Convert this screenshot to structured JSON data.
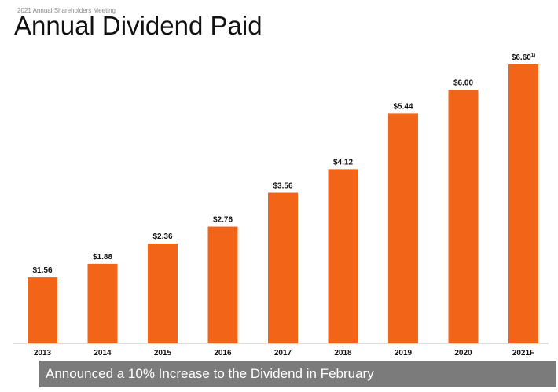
{
  "header": {
    "meeting": "2021 Annual Shareholders Meeting",
    "title": "Annual Dividend Paid"
  },
  "banner": {
    "text": "Announced a 10% Increase to the Dividend in February",
    "color": "#7b7b7b"
  },
  "colors": {
    "bar": "#f26418",
    "axis": "#bdbdbd"
  },
  "chart_data": {
    "type": "bar",
    "title": "Annual Dividend Paid",
    "categories": [
      "2013",
      "2014",
      "2015",
      "2016",
      "2017",
      "2018",
      "2019",
      "2020",
      "2021F"
    ],
    "values": [
      1.56,
      1.88,
      2.36,
      2.76,
      3.56,
      4.12,
      5.44,
      6.0,
      6.6
    ],
    "data_labels": [
      "$1.56",
      "$1.88",
      "$2.36",
      "$2.76",
      "$3.56",
      "$4.12",
      "$5.44",
      "$6.00",
      "$6.60"
    ],
    "footnote_marks": [
      "",
      "",
      "",
      "",
      "",
      "",
      "",
      "",
      "1)"
    ],
    "ylim": [
      0,
      6.6
    ],
    "grid": false,
    "legend": false
  }
}
